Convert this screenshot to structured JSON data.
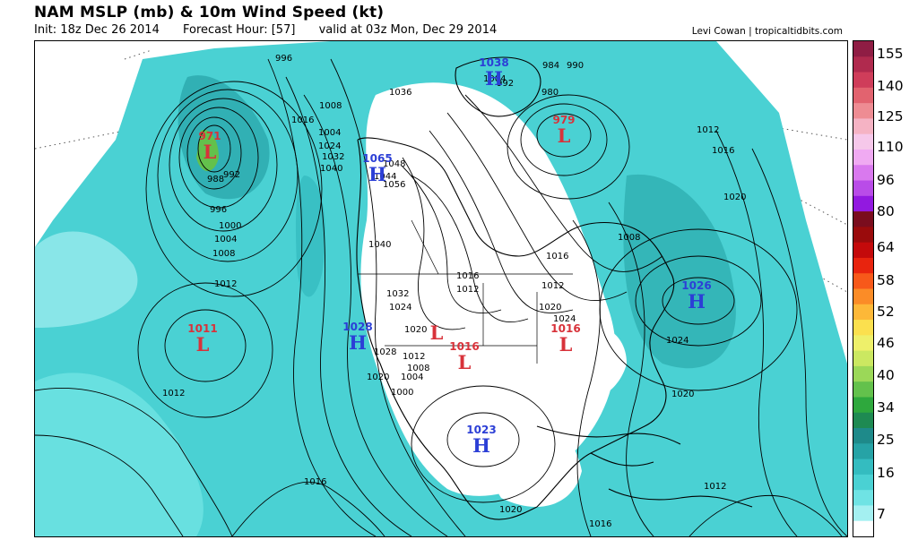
{
  "header": {
    "title": "NAM MSLP (mb) & 10m Wind Speed (kt)",
    "init": "Init: 18z Dec 26 2014",
    "forecast": "Forecast Hour: [57]",
    "valid": "valid at 03z Mon, Dec 29 2014",
    "credit": "Levi Cowan | tropicaltidbits.com"
  },
  "colorbar": {
    "labels": [
      "155",
      "140",
      "125",
      "110",
      "96",
      "80",
      "64",
      "58",
      "52",
      "46",
      "40",
      "34",
      "25",
      "16",
      "7"
    ],
    "colors": [
      "#8f1d44",
      "#b02a4e",
      "#cf3d5a",
      "#e2636f",
      "#ee8c93",
      "#f5b3c4",
      "#f6c8ea",
      "#f0aaf2",
      "#d979ee",
      "#b94ce8",
      "#9219e0",
      "#7a0d1e",
      "#9a0b0c",
      "#c40a0b",
      "#e8240e",
      "#f7591a",
      "#fb8c27",
      "#fdb838",
      "#fbe04e",
      "#eef06a",
      "#cbe861",
      "#9bd858",
      "#63c14c",
      "#2ea83d",
      "#1e8a52",
      "#1e8a8a",
      "#26a3a6",
      "#34bcc0",
      "#4ad1d3",
      "#6fe3e4",
      "#a4f0f1",
      "#ffffff"
    ]
  },
  "map": {
    "pressure_systems": [
      {
        "type": "L",
        "value": "971",
        "color": "#d8323a"
      },
      {
        "type": "L",
        "value": "1011",
        "color": "#d8323a"
      },
      {
        "type": "H",
        "value": "1065",
        "color": "#2c3fd6"
      },
      {
        "type": "H",
        "value": "1038",
        "color": "#2c3fd6"
      },
      {
        "type": "L",
        "value": "979",
        "color": "#d8323a"
      },
      {
        "type": "H",
        "value": "1026",
        "color": "#2c3fd6"
      },
      {
        "type": "L",
        "value": "1016",
        "color": "#d8323a"
      },
      {
        "type": "L",
        "value": "1016",
        "color": "#d8323a"
      },
      {
        "type": "H",
        "value": "1028",
        "color": "#2c3fd6"
      },
      {
        "type": "L",
        "value": "",
        "color": "#d8323a"
      },
      {
        "type": "H",
        "value": "1023",
        "color": "#2c3fd6"
      }
    ],
    "isobar_labels": [
      "996",
      "1016",
      "1008",
      "1004",
      "1024",
      "1032",
      "1040",
      "988",
      "992",
      "996",
      "1000",
      "1004",
      "1008",
      "1012",
      "1036",
      "1048",
      "1044",
      "1056",
      "1040",
      "1032",
      "1024",
      "1020",
      "1012",
      "1008",
      "1004",
      "1000",
      "1004",
      "984",
      "990",
      "992",
      "980",
      "1012",
      "1016",
      "1020",
      "1008",
      "1016",
      "1012",
      "1020",
      "1024",
      "1016",
      "1012",
      "1012",
      "1024",
      "1028",
      "1020",
      "1020",
      "1016",
      "1020",
      "1016",
      "1012"
    ]
  }
}
